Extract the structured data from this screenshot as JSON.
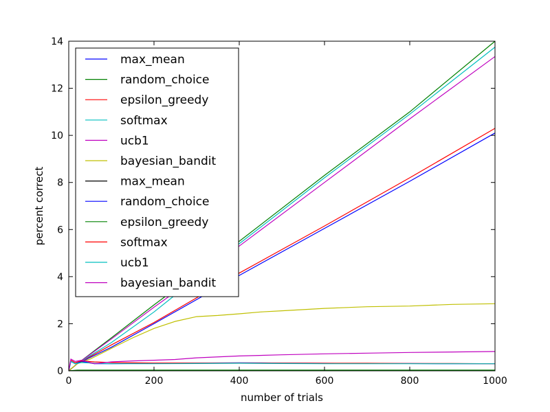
{
  "chart_data": {
    "type": "line",
    "title": "",
    "xlabel": "number of trials",
    "ylabel": "percent correct",
    "xlim": [
      0,
      1000
    ],
    "ylim": [
      0,
      14
    ],
    "xticks": [
      "0",
      "200",
      "400",
      "600",
      "800",
      "1000"
    ],
    "yticks": [
      "0",
      "2",
      "4",
      "6",
      "8",
      "10",
      "12",
      "14"
    ],
    "grid": false,
    "legend_position": "top-left",
    "series": [
      {
        "name": "max_mean",
        "color": "#0000ff",
        "x": [
          0,
          20,
          100,
          200,
          400,
          600,
          800,
          1000
        ],
        "y": [
          0,
          0.3,
          1.0,
          2.0,
          4.05,
          6.05,
          8.05,
          10.1
        ]
      },
      {
        "name": "random_choice",
        "color": "#008000",
        "x": [
          0,
          20,
          100,
          200,
          400,
          600,
          800,
          1000
        ],
        "y": [
          0,
          0.3,
          1.4,
          2.8,
          5.5,
          8.3,
          11.0,
          14.0
        ]
      },
      {
        "name": "epsilon_greedy",
        "color": "#ff0000",
        "x": [
          0,
          20,
          100,
          200,
          400,
          600,
          800,
          1000
        ],
        "y": [
          0,
          0.3,
          1.1,
          2.05,
          4.15,
          6.15,
          8.2,
          10.3
        ]
      },
      {
        "name": "softmax",
        "color": "#00bfbf",
        "x": [
          0,
          20,
          100,
          200,
          400,
          600,
          800,
          1000
        ],
        "y": [
          0,
          0.3,
          1.2,
          2.5,
          5.4,
          8.2,
          10.9,
          13.75
        ]
      },
      {
        "name": "ucb1",
        "color": "#bf00bf",
        "x": [
          0,
          20,
          100,
          200,
          400,
          600,
          800,
          1000
        ],
        "y": [
          0,
          0.3,
          1.35,
          2.7,
          5.3,
          8.0,
          10.7,
          13.35
        ]
      },
      {
        "name": "bayesian_bandit",
        "color": "#bfbf00",
        "x": [
          0,
          20,
          50,
          100,
          150,
          200,
          250,
          300,
          350,
          400,
          450,
          500,
          600,
          700,
          800,
          900,
          1000
        ],
        "y": [
          0,
          0.3,
          0.5,
          0.95,
          1.4,
          1.8,
          2.1,
          2.3,
          2.35,
          2.42,
          2.5,
          2.55,
          2.65,
          2.72,
          2.75,
          2.82,
          2.85
        ]
      },
      {
        "name": "max_mean",
        "color": "#000000",
        "x": [
          0,
          20,
          50,
          100,
          200,
          400,
          600,
          800,
          1000
        ],
        "y": [
          0,
          0.02,
          0.02,
          0.02,
          0.02,
          0.02,
          0.02,
          0.02,
          0.02
        ]
      },
      {
        "name": "random_choice",
        "color": "#0000ff",
        "x": [
          0,
          5,
          15,
          30,
          60,
          100,
          200,
          300,
          400,
          500,
          600,
          700,
          800,
          900,
          1000
        ],
        "y": [
          0,
          0.4,
          0.3,
          0.4,
          0.3,
          0.3,
          0.32,
          0.33,
          0.34,
          0.33,
          0.32,
          0.31,
          0.31,
          0.3,
          0.3
        ]
      },
      {
        "name": "epsilon_greedy",
        "color": "#008000",
        "x": [
          0,
          20,
          50,
          100,
          200,
          400,
          600,
          800,
          1000
        ],
        "y": [
          0,
          0.03,
          0.03,
          0.03,
          0.03,
          0.03,
          0.03,
          0.03,
          0.03
        ]
      },
      {
        "name": "softmax",
        "color": "#ff0000",
        "x": [
          0,
          5,
          15,
          30,
          60,
          100,
          200,
          300,
          400,
          500,
          600,
          700,
          800,
          900,
          1000
        ],
        "y": [
          0,
          0.45,
          0.35,
          0.42,
          0.38,
          0.35,
          0.33,
          0.33,
          0.33,
          0.33,
          0.32,
          0.32,
          0.31,
          0.31,
          0.3
        ]
      },
      {
        "name": "ucb1",
        "color": "#00bfbf",
        "x": [
          0,
          5,
          15,
          30,
          60,
          100,
          200,
          300,
          400,
          500,
          600,
          700,
          800,
          900,
          1000
        ],
        "y": [
          0,
          0.4,
          0.3,
          0.35,
          0.32,
          0.3,
          0.3,
          0.31,
          0.32,
          0.31,
          0.3,
          0.3,
          0.3,
          0.3,
          0.3
        ]
      },
      {
        "name": "bayesian_bandit",
        "color": "#bf00bf",
        "x": [
          0,
          5,
          15,
          30,
          60,
          100,
          150,
          200,
          250,
          300,
          400,
          500,
          600,
          700,
          800,
          900,
          1000
        ],
        "y": [
          0,
          0.5,
          0.4,
          0.45,
          0.3,
          0.38,
          0.42,
          0.45,
          0.48,
          0.55,
          0.63,
          0.68,
          0.72,
          0.75,
          0.78,
          0.8,
          0.82
        ]
      }
    ]
  }
}
